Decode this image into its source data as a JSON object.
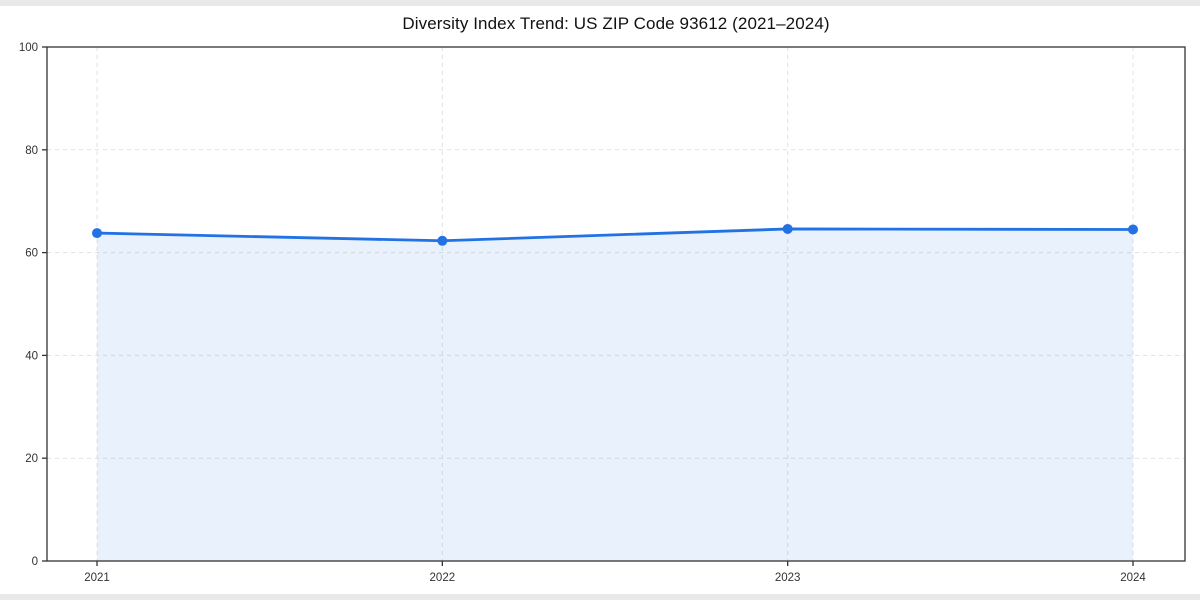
{
  "chart_data": {
    "type": "area",
    "title": "Diversity Index Trend: US ZIP Code 93612 (2021–2024)",
    "categories": [
      "2021",
      "2022",
      "2023",
      "2024"
    ],
    "series": [
      {
        "name": "Diversity Index",
        "values": [
          63.8,
          62.3,
          64.6,
          64.5
        ]
      }
    ],
    "xlabel": "",
    "ylabel": "",
    "ylim": [
      0,
      100
    ],
    "yticks": [
      0,
      20,
      40,
      60,
      80,
      100
    ],
    "grid": true,
    "grid_style": "dashed",
    "legend_position": "none",
    "colors": {
      "line": "#2272e3",
      "marker": "#2272e3",
      "fill": "rgba(34, 114, 227, 0.10)",
      "grid": "#e1e1e1",
      "axis": "#333333",
      "tick_label": "#333333",
      "title": "#111111",
      "plot_background": "#ffffff",
      "page_background": "#e9e9e9"
    }
  }
}
